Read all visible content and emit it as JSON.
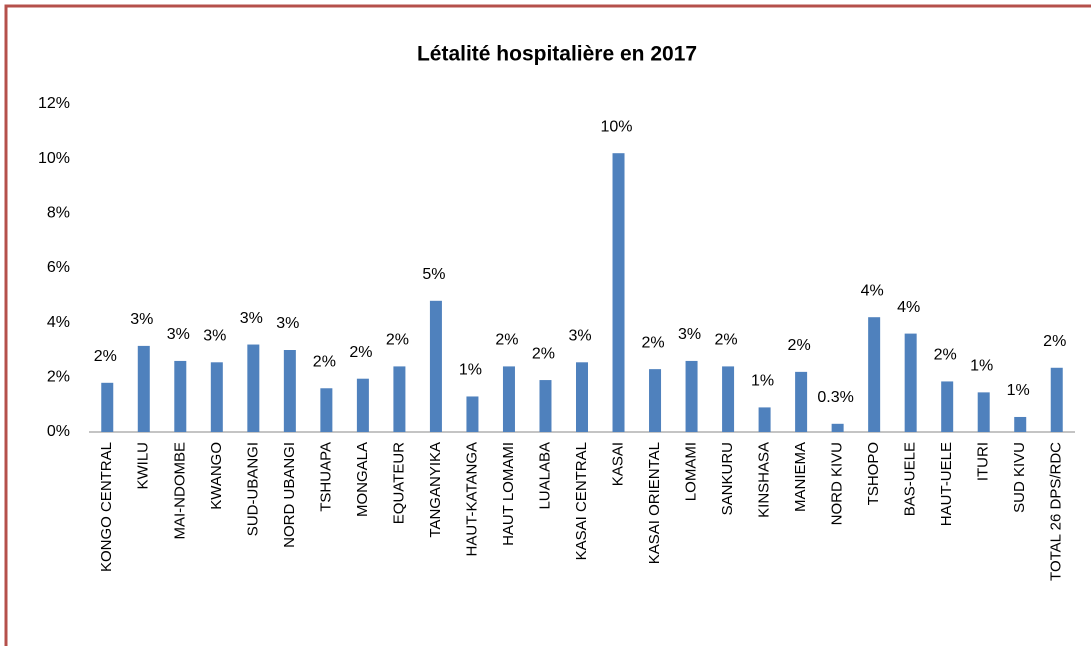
{
  "chart_data": {
    "type": "bar",
    "title": "Létalité hospitalière en 2017",
    "categories": [
      "KONGO CENTRAL",
      "KWILU",
      "MAI-NDOMBE",
      "KWANGO",
      "SUD-UBANGI",
      "NORD UBANGI",
      "TSHUAPA",
      "MONGALA",
      "EQUATEUR",
      "TANGANYIKA",
      "HAUT-KATANGA",
      "HAUT LOMAMI",
      "LUALABA",
      "KASAI CENTRAL",
      "KASAI",
      "KASAI ORIENTAL",
      "LOMAMI",
      "SANKURU",
      "KINSHASA",
      "MANIEMA",
      "NORD KIVU",
      "TSHOPO",
      "BAS-UELE",
      "HAUT-UELE",
      "ITURI",
      "SUD KIVU",
      "TOTAL 26 DPS/RDC"
    ],
    "values": [
      1.8,
      3.15,
      2.6,
      2.55,
      3.2,
      3.0,
      1.6,
      1.95,
      2.4,
      4.8,
      1.3,
      2.4,
      1.9,
      2.55,
      10.2,
      2.3,
      2.6,
      2.4,
      0.9,
      2.2,
      0.3,
      4.2,
      3.6,
      1.85,
      1.45,
      0.55,
      2.35
    ],
    "value_labels": [
      "2%",
      "3%",
      "3%",
      "3%",
      "3%",
      "3%",
      "2%",
      "2%",
      "2%",
      "5%",
      "1%",
      "2%",
      "2%",
      "3%",
      "10%",
      "2%",
      "3%",
      "2%",
      "1%",
      "2%",
      "0.3%",
      "4%",
      "4%",
      "2%",
      "1%",
      "1%",
      "2%"
    ],
    "color": "#4f81bd",
    "ylim": [
      0,
      12
    ],
    "yticks": [
      {
        "value": 0,
        "label": "0%"
      },
      {
        "value": 2,
        "label": "2%"
      },
      {
        "value": 4,
        "label": "4%"
      },
      {
        "value": 6,
        "label": "6%"
      },
      {
        "value": 8,
        "label": "8%"
      },
      {
        "value": 10,
        "label": "10%"
      },
      {
        "value": 12,
        "label": "12%"
      }
    ],
    "grid": false
  }
}
